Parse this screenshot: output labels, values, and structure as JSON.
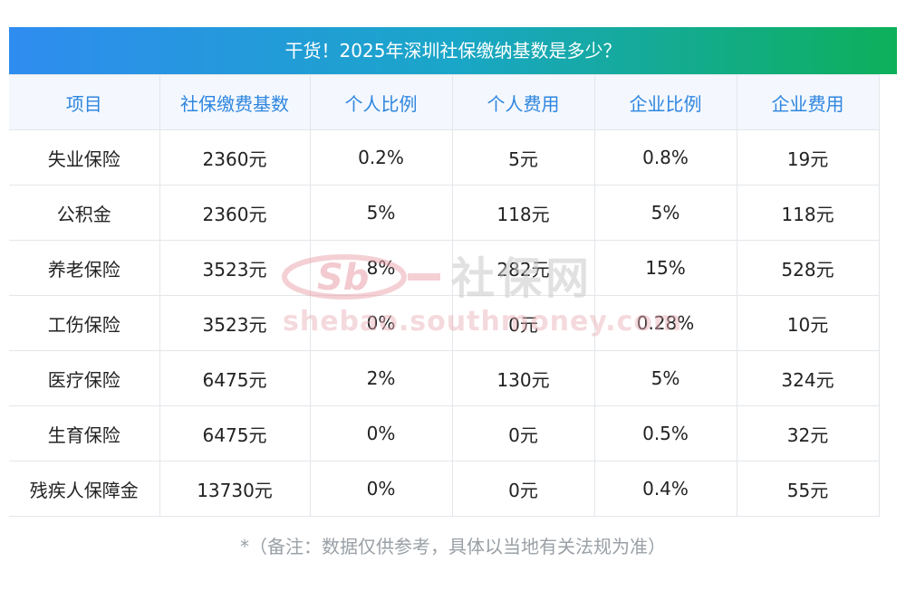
{
  "title": "干货！2025年深圳社保缴纳基数是多少？",
  "table": {
    "headers": [
      "项目",
      "社保缴费基数",
      "个人比例",
      "个人费用",
      "企业比例",
      "企业费用"
    ],
    "rows": [
      [
        "失业保险",
        "2360元",
        "0.2%",
        "5元",
        "0.8%",
        "19元"
      ],
      [
        "公积金",
        "2360元",
        "5%",
        "118元",
        "5%",
        "118元"
      ],
      [
        "养老保险",
        "3523元",
        "8%",
        "282元",
        "15%",
        "528元"
      ],
      [
        "工伤保险",
        "3523元",
        "0%",
        "0元",
        "0.28%",
        "10元"
      ],
      [
        "医疗保险",
        "6475元",
        "2%",
        "130元",
        "5%",
        "324元"
      ],
      [
        "生育保险",
        "6475元",
        "0%",
        "0元",
        "0.5%",
        "32元"
      ],
      [
        "残疾人保障金",
        "13730元",
        "0%",
        "0元",
        "0.4%",
        "55元"
      ]
    ]
  },
  "note": "*（备注：数据仅供参考，具体以当地有关法规为准）",
  "watermark": {
    "logo_text": "Sb",
    "name": "社保网",
    "url": "shebao.southmoney.com"
  }
}
